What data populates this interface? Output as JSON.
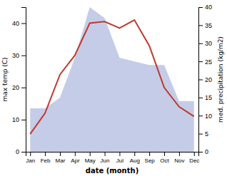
{
  "chart_data": {
    "type": "line",
    "xlabel": "date (month)",
    "ylabel": "max temp (C)",
    "y2label": "med. precipitation (kg/m2)",
    "categories": [
      "Jan",
      "Feb",
      "Mar",
      "Apr",
      "May",
      "Jun",
      "Jul",
      "Aug",
      "Sep",
      "Oct",
      "Nov",
      "Dec"
    ],
    "series": [
      {
        "type": "area",
        "axis": "y2",
        "color": "#c5cce8",
        "values": [
          12,
          12,
          15,
          26,
          40,
          37,
          26,
          25,
          24,
          24,
          14,
          14
        ]
      },
      {
        "type": "line",
        "color": "#c0392b",
        "values": [
          5.5,
          12,
          24,
          30,
          40,
          40.5,
          38.5,
          41,
          33,
          20,
          14,
          11
        ]
      }
    ],
    "ylim": [
      0,
      45
    ],
    "yticks": [
      0,
      10,
      20,
      30,
      40
    ],
    "y2lim": [
      0,
      40
    ],
    "y2ticks": [
      0,
      5,
      10,
      15,
      20,
      25,
      30,
      35,
      40
    ]
  }
}
